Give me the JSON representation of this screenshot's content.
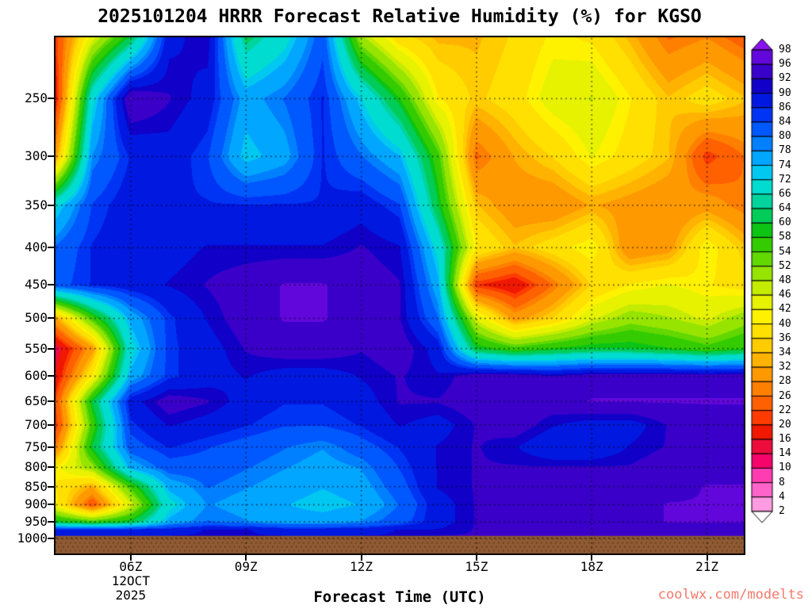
{
  "title": "2025101204 HRRR Forecast Relative Humidity (%) for KGSO",
  "watermark": {
    "text": "coolwx.com/modelts",
    "color": "#f4796b"
  },
  "x_axis": {
    "label": "Forecast Time (UTC)",
    "ticks": [
      {
        "hour": 6,
        "label": "06Z"
      },
      {
        "hour": 9,
        "label": "09Z"
      },
      {
        "hour": 12,
        "label": "12Z"
      },
      {
        "hour": 15,
        "label": "15Z"
      },
      {
        "hour": 18,
        "label": "18Z"
      },
      {
        "hour": 21,
        "label": "21Z"
      }
    ],
    "date_line1": "12OCT",
    "date_line2": "2025",
    "date_under_hour": 6
  },
  "y_axis": {
    "ticks": [
      250,
      300,
      350,
      400,
      450,
      500,
      550,
      600,
      650,
      700,
      750,
      800,
      850,
      900,
      950,
      1000
    ]
  },
  "chart_data": {
    "type": "heatmap",
    "title": "2025101204 HRRR Forecast Relative Humidity (%) for KGSO",
    "xlabel": "Forecast Time (UTC)",
    "ylabel": "",
    "value_unit": "%",
    "xlim": [
      4,
      22
    ],
    "plim": [
      205,
      1055
    ],
    "x_hours": [
      4,
      5,
      6,
      7,
      8,
      9,
      10,
      11,
      12,
      13,
      14,
      15,
      16,
      17,
      18,
      19,
      20,
      21,
      22
    ],
    "pressure_levels": [
      200,
      250,
      300,
      350,
      400,
      450,
      500,
      550,
      600,
      650,
      700,
      750,
      800,
      850,
      900,
      950,
      975,
      995
    ],
    "values": [
      [
        20,
        40,
        55,
        88,
        92,
        60,
        68,
        82,
        45,
        34,
        32,
        33,
        36,
        40,
        38,
        32,
        24,
        26,
        22
      ],
      [
        15,
        70,
        96,
        92,
        88,
        76,
        80,
        86,
        72,
        58,
        40,
        35,
        38,
        44,
        46,
        40,
        34,
        38,
        34
      ],
      [
        28,
        78,
        86,
        88,
        84,
        72,
        76,
        86,
        80,
        74,
        55,
        25,
        32,
        36,
        42,
        38,
        34,
        20,
        26
      ],
      [
        70,
        84,
        88,
        86,
        86,
        86,
        86,
        86,
        88,
        84,
        60,
        34,
        29,
        28,
        32,
        30,
        28,
        30,
        26
      ],
      [
        80,
        86,
        88,
        88,
        90,
        90,
        90,
        90,
        92,
        90,
        70,
        40,
        34,
        38,
        42,
        28,
        30,
        42,
        34
      ],
      [
        82,
        86,
        88,
        90,
        92,
        94,
        96,
        96,
        94,
        92,
        75,
        20,
        16,
        26,
        36,
        40,
        42,
        40,
        38
      ],
      [
        30,
        55,
        75,
        85,
        90,
        94,
        96,
        96,
        94,
        92,
        80,
        45,
        30,
        36,
        45,
        50,
        48,
        45,
        50
      ],
      [
        12,
        30,
        70,
        85,
        88,
        92,
        94,
        94,
        92,
        94,
        88,
        60,
        55,
        58,
        60,
        60,
        58,
        55,
        58
      ],
      [
        15,
        40,
        75,
        85,
        88,
        90,
        88,
        88,
        90,
        92,
        90,
        94,
        94,
        92,
        94,
        94,
        94,
        94,
        94
      ],
      [
        20,
        60,
        88,
        94,
        92,
        88,
        86,
        86,
        88,
        92,
        92,
        94,
        94,
        94,
        96,
        96,
        96,
        96,
        96
      ],
      [
        18,
        55,
        85,
        90,
        88,
        86,
        84,
        84,
        86,
        90,
        88,
        92,
        94,
        90,
        88,
        88,
        92,
        94,
        94
      ],
      [
        25,
        60,
        82,
        86,
        84,
        82,
        80,
        78,
        82,
        86,
        90,
        92,
        90,
        86,
        86,
        90,
        92,
        94,
        94
      ],
      [
        40,
        50,
        75,
        82,
        82,
        80,
        78,
        76,
        78,
        84,
        90,
        92,
        92,
        92,
        92,
        92,
        94,
        94,
        94
      ],
      [
        40,
        32,
        55,
        75,
        80,
        78,
        76,
        74,
        76,
        82,
        90,
        92,
        94,
        94,
        94,
        94,
        94,
        96,
        96
      ],
      [
        42,
        22,
        45,
        70,
        78,
        76,
        74,
        72,
        74,
        80,
        88,
        92,
        94,
        94,
        94,
        94,
        96,
        96,
        96
      ],
      [
        60,
        55,
        60,
        75,
        80,
        78,
        76,
        76,
        78,
        82,
        88,
        92,
        94,
        94,
        94,
        94,
        96,
        96,
        96
      ],
      [
        88,
        88,
        88,
        88,
        90,
        90,
        88,
        88,
        88,
        90,
        90,
        92,
        92,
        92,
        92,
        92,
        92,
        92,
        92
      ],
      [
        90,
        90,
        90,
        90,
        90,
        90,
        90,
        90,
        90,
        90,
        92,
        92,
        92,
        92,
        92,
        92,
        92,
        92,
        92
      ]
    ],
    "palette": [
      {
        "v": 0,
        "c": "#ffffff"
      },
      {
        "v": 2,
        "c": "#ff9be0"
      },
      {
        "v": 4,
        "c": "#ff64cb"
      },
      {
        "v": 8,
        "c": "#ff3cb2"
      },
      {
        "v": 10,
        "c": "#fd1d92"
      },
      {
        "v": 12,
        "c": "#f5056b"
      },
      {
        "v": 14,
        "c": "#ec0d3c"
      },
      {
        "v": 16,
        "c": "#f01800"
      },
      {
        "v": 20,
        "c": "#ff3c00"
      },
      {
        "v": 22,
        "c": "#ff6000"
      },
      {
        "v": 26,
        "c": "#ff7f00"
      },
      {
        "v": 28,
        "c": "#ff9900"
      },
      {
        "v": 32,
        "c": "#ffb300"
      },
      {
        "v": 34,
        "c": "#ffcc00"
      },
      {
        "v": 36,
        "c": "#ffe000"
      },
      {
        "v": 40,
        "c": "#fff200"
      },
      {
        "v": 42,
        "c": "#e6f200"
      },
      {
        "v": 46,
        "c": "#c4ec00"
      },
      {
        "v": 48,
        "c": "#96e400"
      },
      {
        "v": 52,
        "c": "#62d800"
      },
      {
        "v": 54,
        "c": "#34cc00"
      },
      {
        "v": 58,
        "c": "#0cc414"
      },
      {
        "v": 60,
        "c": "#00cc5a"
      },
      {
        "v": 64,
        "c": "#00d49e"
      },
      {
        "v": 66,
        "c": "#00dcd0"
      },
      {
        "v": 72,
        "c": "#00c8f0"
      },
      {
        "v": 74,
        "c": "#00a6ff"
      },
      {
        "v": 78,
        "c": "#0080ff"
      },
      {
        "v": 80,
        "c": "#0058ff"
      },
      {
        "v": 84,
        "c": "#0034f4"
      },
      {
        "v": 86,
        "c": "#0018e0"
      },
      {
        "v": 90,
        "c": "#1000c8"
      },
      {
        "v": 92,
        "c": "#3a00ca"
      },
      {
        "v": 96,
        "c": "#6207dc"
      },
      {
        "v": 98,
        "c": "#8812f0"
      }
    ],
    "colorbar_labels": [
      "98",
      "96",
      "92",
      "90",
      "86",
      "84",
      "80",
      "78",
      "74",
      "72",
      "66",
      "64",
      "60",
      "58",
      "54",
      "52",
      "48",
      "46",
      "42",
      "40",
      "36",
      "34",
      "32",
      "28",
      "26",
      "22",
      "20",
      "16",
      "14",
      "10",
      "8",
      "4",
      "2"
    ],
    "ground": {
      "color": "#8f5a33",
      "dot_color": "#5a3616",
      "top_pressure": 993
    },
    "grid_dots": {
      "color": "rgba(0,0,0,0.6)"
    },
    "legend_position": "right",
    "grid": "dotted"
  }
}
